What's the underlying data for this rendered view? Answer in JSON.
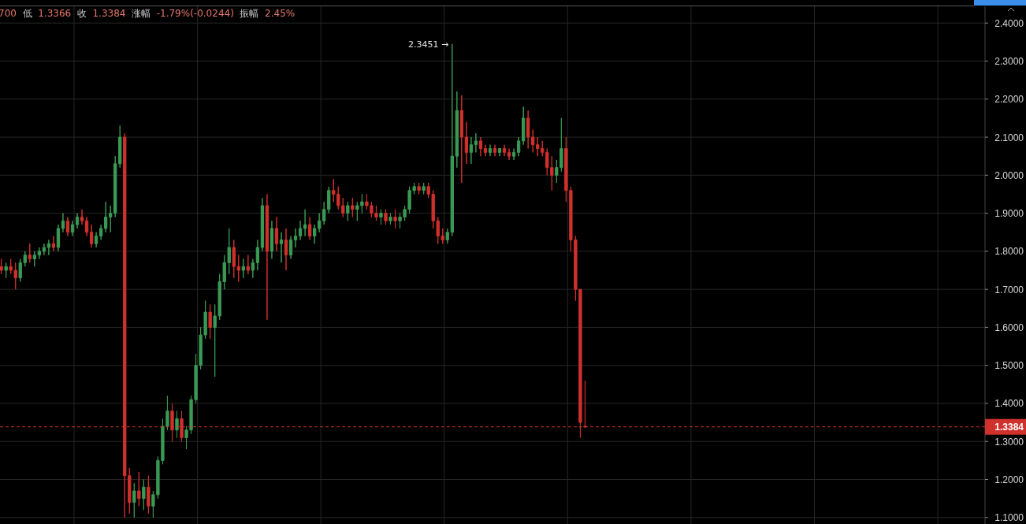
{
  "chart_data": {
    "type": "candlestick",
    "categories": [
      null,
      null,
      null,
      null,
      null,
      null,
      null,
      null,
      null,
      null,
      null,
      null,
      null,
      null,
      null,
      null,
      null,
      null,
      null,
      null,
      null,
      null,
      null,
      null,
      null,
      null,
      null,
      null,
      null,
      null,
      null,
      null,
      null,
      null,
      null,
      null,
      null,
      null,
      null,
      null,
      null,
      null,
      null,
      null,
      null,
      null,
      null,
      null,
      null,
      null,
      null,
      null,
      null,
      null,
      null,
      null,
      null,
      null,
      null,
      null,
      null,
      null,
      null,
      null,
      null,
      null,
      null,
      null,
      null,
      null,
      null,
      null,
      null,
      null,
      null,
      null,
      null,
      null,
      null,
      null,
      null,
      null,
      null,
      null,
      null,
      null,
      null,
      null,
      null,
      null,
      null,
      null,
      null,
      null,
      null,
      null,
      null,
      null,
      null,
      null,
      null,
      null,
      null,
      null,
      null,
      null,
      null,
      null,
      null,
      null,
      null,
      null,
      null,
      null,
      null,
      null,
      null,
      null,
      null,
      null,
      null,
      null,
      null,
      null,
      null,
      null,
      null,
      null,
      null,
      null,
      null,
      null,
      null,
      null,
      null,
      null,
      null,
      null,
      null,
      null,
      null,
      null,
      null,
      null,
      null,
      null,
      null,
      null,
      null,
      null,
      null,
      null,
      null,
      null,
      null,
      null,
      null,
      null,
      null,
      null,
      null,
      null,
      null,
      null,
      null,
      null,
      null,
      null,
      null,
      null,
      null,
      null,
      null,
      null,
      null,
      null,
      null,
      null,
      null,
      null,
      null,
      null,
      null,
      null,
      null,
      null,
      null,
      null,
      null,
      null,
      null,
      null,
      null,
      null,
      null,
      null,
      null,
      null,
      null,
      null,
      null,
      null,
      null,
      null,
      null,
      null,
      null,
      null
    ],
    "ohlc": [
      [
        1.76,
        1.78,
        1.74,
        1.75
      ],
      [
        1.75,
        1.77,
        1.73,
        1.76
      ],
      [
        1.76,
        1.78,
        1.74,
        1.75
      ],
      [
        1.75,
        1.77,
        1.7,
        1.73
      ],
      [
        1.73,
        1.78,
        1.72,
        1.77
      ],
      [
        1.77,
        1.8,
        1.76,
        1.79
      ],
      [
        1.79,
        1.82,
        1.77,
        1.78
      ],
      [
        1.78,
        1.8,
        1.76,
        1.79
      ],
      [
        1.79,
        1.81,
        1.78,
        1.8
      ],
      [
        1.8,
        1.82,
        1.79,
        1.81
      ],
      [
        1.81,
        1.83,
        1.79,
        1.82
      ],
      [
        1.82,
        1.84,
        1.8,
        1.81
      ],
      [
        1.81,
        1.87,
        1.8,
        1.86
      ],
      [
        1.86,
        1.9,
        1.85,
        1.88
      ],
      [
        1.88,
        1.89,
        1.84,
        1.85
      ],
      [
        1.85,
        1.88,
        1.84,
        1.87
      ],
      [
        1.87,
        1.9,
        1.86,
        1.89
      ],
      [
        1.89,
        1.91,
        1.87,
        1.88
      ],
      [
        1.88,
        1.89,
        1.84,
        1.85
      ],
      [
        1.85,
        1.87,
        1.81,
        1.82
      ],
      [
        1.82,
        1.85,
        1.81,
        1.84
      ],
      [
        1.84,
        1.87,
        1.83,
        1.86
      ],
      [
        1.86,
        1.93,
        1.85,
        1.89
      ],
      [
        1.89,
        1.92,
        1.85,
        1.9
      ],
      [
        1.9,
        2.05,
        1.89,
        2.03
      ],
      [
        2.03,
        2.13,
        2.02,
        2.1
      ],
      [
        2.1,
        2.11,
        1.1,
        1.21
      ],
      [
        1.21,
        1.23,
        1.11,
        1.14
      ],
      [
        1.14,
        1.19,
        1.1,
        1.17
      ],
      [
        1.17,
        1.22,
        1.13,
        1.15
      ],
      [
        1.15,
        1.2,
        1.12,
        1.18
      ],
      [
        1.18,
        1.21,
        1.11,
        1.13
      ],
      [
        1.13,
        1.17,
        1.1,
        1.16
      ],
      [
        1.16,
        1.26,
        1.15,
        1.25
      ],
      [
        1.25,
        1.36,
        1.24,
        1.34
      ],
      [
        1.34,
        1.42,
        1.33,
        1.38
      ],
      [
        1.38,
        1.4,
        1.3,
        1.33
      ],
      [
        1.33,
        1.38,
        1.31,
        1.36
      ],
      [
        1.36,
        1.38,
        1.3,
        1.31
      ],
      [
        1.31,
        1.34,
        1.28,
        1.33
      ],
      [
        1.33,
        1.42,
        1.32,
        1.41
      ],
      [
        1.41,
        1.53,
        1.4,
        1.5
      ],
      [
        1.5,
        1.6,
        1.49,
        1.58
      ],
      [
        1.58,
        1.67,
        1.57,
        1.64
      ],
      [
        1.64,
        1.66,
        1.57,
        1.6
      ],
      [
        1.6,
        1.66,
        1.47,
        1.63
      ],
      [
        1.63,
        1.74,
        1.62,
        1.72
      ],
      [
        1.72,
        1.79,
        1.7,
        1.77
      ],
      [
        1.77,
        1.86,
        1.74,
        1.81
      ],
      [
        1.81,
        1.83,
        1.73,
        1.76
      ],
      [
        1.76,
        1.79,
        1.72,
        1.75
      ],
      [
        1.75,
        1.78,
        1.73,
        1.76
      ],
      [
        1.76,
        1.79,
        1.74,
        1.75
      ],
      [
        1.75,
        1.78,
        1.73,
        1.77
      ],
      [
        1.77,
        1.83,
        1.75,
        1.81
      ],
      [
        1.81,
        1.94,
        1.8,
        1.92
      ],
      [
        1.92,
        1.95,
        1.62,
        1.8
      ],
      [
        1.8,
        1.88,
        1.78,
        1.86
      ],
      [
        1.86,
        1.89,
        1.8,
        1.82
      ],
      [
        1.82,
        1.85,
        1.77,
        1.83
      ],
      [
        1.83,
        1.86,
        1.75,
        1.79
      ],
      [
        1.79,
        1.84,
        1.78,
        1.83
      ],
      [
        1.83,
        1.86,
        1.81,
        1.84
      ],
      [
        1.84,
        1.88,
        1.83,
        1.86
      ],
      [
        1.86,
        1.91,
        1.84,
        1.87
      ],
      [
        1.87,
        1.89,
        1.83,
        1.84
      ],
      [
        1.84,
        1.87,
        1.82,
        1.86
      ],
      [
        1.86,
        1.9,
        1.85,
        1.88
      ],
      [
        1.88,
        1.93,
        1.87,
        1.91
      ],
      [
        1.91,
        1.97,
        1.9,
        1.96
      ],
      [
        1.96,
        1.99,
        1.93,
        1.95
      ],
      [
        1.95,
        1.97,
        1.91,
        1.92
      ],
      [
        1.92,
        1.94,
        1.89,
        1.9
      ],
      [
        1.9,
        1.93,
        1.88,
        1.92
      ],
      [
        1.92,
        1.94,
        1.89,
        1.91
      ],
      [
        1.91,
        1.93,
        1.88,
        1.92
      ],
      [
        1.92,
        1.95,
        1.9,
        1.93
      ],
      [
        1.93,
        1.95,
        1.91,
        1.92
      ],
      [
        1.92,
        1.93,
        1.89,
        1.9
      ],
      [
        1.9,
        1.92,
        1.88,
        1.89
      ],
      [
        1.89,
        1.91,
        1.87,
        1.9
      ],
      [
        1.9,
        1.91,
        1.87,
        1.88
      ],
      [
        1.88,
        1.9,
        1.87,
        1.89
      ],
      [
        1.89,
        1.91,
        1.86,
        1.88
      ],
      [
        1.88,
        1.9,
        1.86,
        1.89
      ],
      [
        1.89,
        1.92,
        1.88,
        1.91
      ],
      [
        1.91,
        1.97,
        1.9,
        1.96
      ],
      [
        1.96,
        1.98,
        1.95,
        1.97
      ],
      [
        1.97,
        1.98,
        1.95,
        1.96
      ],
      [
        1.96,
        1.98,
        1.95,
        1.97
      ],
      [
        1.97,
        1.98,
        1.94,
        1.95
      ],
      [
        1.95,
        1.96,
        1.86,
        1.88
      ],
      [
        1.88,
        1.89,
        1.82,
        1.84
      ],
      [
        1.84,
        1.86,
        1.82,
        1.83
      ],
      [
        1.83,
        1.86,
        1.82,
        1.85
      ],
      [
        1.85,
        2.3451,
        1.84,
        2.05
      ],
      [
        2.05,
        2.22,
        2.02,
        2.17
      ],
      [
        2.17,
        2.21,
        1.98,
        2.1
      ],
      [
        2.1,
        2.14,
        2.03,
        2.06
      ],
      [
        2.06,
        2.1,
        2.03,
        2.08
      ],
      [
        2.08,
        2.11,
        2.06,
        2.09
      ],
      [
        2.09,
        2.1,
        2.05,
        2.07
      ],
      [
        2.07,
        2.08,
        2.05,
        2.06
      ],
      [
        2.06,
        2.08,
        2.05,
        2.07
      ],
      [
        2.07,
        2.08,
        2.05,
        2.06
      ],
      [
        2.06,
        2.07,
        2.05,
        2.07
      ],
      [
        2.07,
        2.08,
        2.05,
        2.06
      ],
      [
        2.06,
        2.07,
        2.04,
        2.05
      ],
      [
        2.05,
        2.07,
        2.04,
        2.06
      ],
      [
        2.06,
        2.1,
        2.05,
        2.09
      ],
      [
        2.09,
        2.18,
        2.08,
        2.15
      ],
      [
        2.15,
        2.17,
        2.07,
        2.1
      ],
      [
        2.1,
        2.12,
        2.06,
        2.08
      ],
      [
        2.08,
        2.1,
        2.05,
        2.07
      ],
      [
        2.07,
        2.09,
        2.05,
        2.06
      ],
      [
        2.06,
        2.07,
        2.0,
        2.02
      ],
      [
        2.02,
        2.05,
        1.96,
        2.0
      ],
      [
        2.0,
        2.04,
        1.98,
        2.02
      ],
      [
        2.02,
        2.15,
        2.01,
        2.07
      ],
      [
        2.07,
        2.1,
        1.93,
        1.96
      ],
      [
        1.96,
        1.97,
        1.8,
        1.83
      ],
      [
        1.83,
        1.84,
        1.67,
        1.7
      ],
      [
        1.7,
        1.7,
        1.31,
        1.35
      ],
      [
        1.34,
        1.46,
        1.3366,
        1.3384
      ],
      null,
      null,
      null,
      null,
      null,
      null,
      null,
      null,
      null,
      null,
      null,
      null,
      null,
      null,
      null,
      null,
      null,
      null,
      null,
      null,
      null,
      null,
      null,
      null,
      null,
      null,
      null,
      null,
      null,
      null,
      null,
      null,
      null,
      null,
      null,
      null,
      null,
      null,
      null,
      null,
      null,
      null,
      null,
      null,
      null,
      null,
      null,
      null,
      null,
      null,
      null,
      null,
      null,
      null,
      null,
      null,
      null,
      null,
      null,
      null,
      null,
      null,
      null,
      null,
      null,
      null,
      null,
      null,
      null,
      null,
      null,
      null,
      null,
      null,
      null,
      null,
      null,
      null,
      null,
      null,
      null,
      null,
      null,
      null
    ],
    "colors": [
      "#d0312d",
      "#3a9a54",
      "#d0312d",
      "#d0312d",
      "#3a9a54",
      "#3a9a54",
      "#d0312d",
      "#3a9a54",
      "#3a9a54",
      "#3a9a54",
      "#3a9a54",
      "#d0312d",
      "#3a9a54",
      "#3a9a54",
      "#d0312d",
      "#3a9a54",
      "#3a9a54",
      "#d0312d",
      "#d0312d",
      "#d0312d",
      "#3a9a54",
      "#3a9a54",
      "#3a9a54",
      "#3a9a54",
      "#3a9a54",
      "#3a9a54",
      "#d0312d",
      "#d0312d",
      "#3a9a54",
      "#d0312d",
      "#3a9a54",
      "#d0312d",
      "#3a9a54",
      "#3a9a54",
      "#3a9a54",
      "#3a9a54",
      "#d0312d",
      "#3a9a54",
      "#d0312d",
      "#3a9a54",
      "#3a9a54",
      "#3a9a54",
      "#3a9a54",
      "#3a9a54",
      "#d0312d",
      "#3a9a54",
      "#3a9a54",
      "#3a9a54",
      "#3a9a54",
      "#d0312d",
      "#d0312d",
      "#3a9a54",
      "#d0312d",
      "#3a9a54",
      "#3a9a54",
      "#3a9a54",
      "#d0312d",
      "#3a9a54",
      "#d0312d",
      "#3a9a54",
      "#d0312d",
      "#3a9a54",
      "#3a9a54",
      "#3a9a54",
      "#3a9a54",
      "#d0312d",
      "#3a9a54",
      "#3a9a54",
      "#3a9a54",
      "#3a9a54",
      "#d0312d",
      "#d0312d",
      "#d0312d",
      "#3a9a54",
      "#d0312d",
      "#3a9a54",
      "#3a9a54",
      "#d0312d",
      "#d0312d",
      "#d0312d",
      "#3a9a54",
      "#d0312d",
      "#3a9a54",
      "#d0312d",
      "#3a9a54",
      "#3a9a54",
      "#3a9a54",
      "#3a9a54",
      "#d0312d",
      "#3a9a54",
      "#d0312d",
      "#d0312d",
      "#d0312d",
      "#d0312d",
      "#3a9a54",
      "#3a9a54",
      "#3a9a54",
      "#d0312d",
      "#d0312d",
      "#3a9a54",
      "#3a9a54",
      "#d0312d",
      "#d0312d",
      "#3a9a54",
      "#d0312d",
      "#3a9a54",
      "#d0312d",
      "#d0312d",
      "#3a9a54",
      "#3a9a54",
      "#3a9a54",
      "#d0312d",
      "#d0312d",
      "#d0312d",
      "#d0312d",
      "#d0312d",
      "#d0312d",
      "#3a9a54",
      "#3a9a54",
      "#d0312d",
      "#d0312d",
      "#d0312d",
      "#d0312d",
      "#d0312d",
      null,
      null,
      null,
      null,
      null,
      null,
      null,
      null,
      null,
      null,
      null,
      null,
      null,
      null,
      null,
      null,
      null,
      null,
      null,
      null,
      null,
      null,
      null,
      null,
      null,
      null,
      null,
      null,
      null,
      null,
      null,
      null,
      null,
      null,
      null,
      null,
      null,
      null,
      null,
      null,
      null,
      null,
      null,
      null,
      null,
      null,
      null,
      null,
      null,
      null,
      null,
      null,
      null,
      null,
      null,
      null,
      null,
      null,
      null,
      null,
      null,
      null,
      null,
      null,
      null,
      null,
      null,
      null,
      null,
      null,
      null,
      null,
      null,
      null,
      null,
      null,
      null,
      null,
      null,
      null,
      null,
      null,
      null,
      null
    ],
    "ylim": [
      1.083,
      2.444
    ],
    "yticks": [
      {
        "value": 1.1,
        "label": "1.1000"
      },
      {
        "value": 1.2,
        "label": "1.2000"
      },
      {
        "value": 1.3,
        "label": "1.3000"
      },
      {
        "value": 1.4,
        "label": "1.4000"
      },
      {
        "value": 1.5,
        "label": "1.5000"
      },
      {
        "value": 1.6,
        "label": "1.6000"
      },
      {
        "value": 1.7,
        "label": "1.7000"
      },
      {
        "value": 1.8,
        "label": "1.8000"
      },
      {
        "value": 1.9,
        "label": "1.9000"
      },
      {
        "value": 2.0,
        "label": "2.0000"
      },
      {
        "value": 2.1,
        "label": "2.1000"
      },
      {
        "value": 2.2,
        "label": "2.2000"
      },
      {
        "value": 2.3,
        "label": "2.3000"
      },
      {
        "value": 2.4,
        "label": "2.4000"
      }
    ],
    "grid": true,
    "tick_labels": "y",
    "ref_lines": [
      {
        "axis": "y",
        "value": 1.3384,
        "label": "1.3384",
        "color": "#d0312d",
        "line_style": "dashed"
      }
    ],
    "annotations": [
      "700 低 1.3366 收 1.3384 涨幅 -1.79%(-0.0244) 振幅 2.45%",
      "2.3451 →"
    ]
  }
}
